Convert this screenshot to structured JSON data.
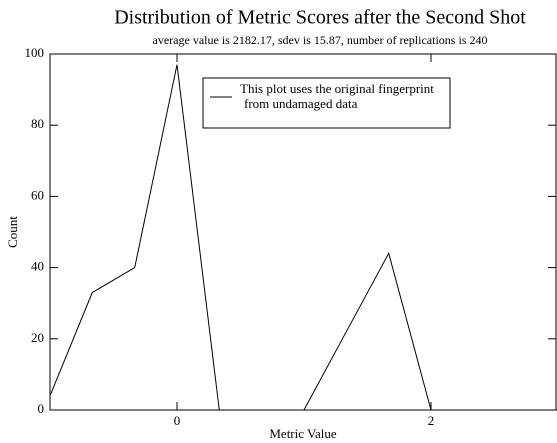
{
  "chart_data": {
    "type": "line",
    "title": "Distribution of Metric Scores after the Second Shot",
    "subtitle": "average value is  2182.17, sdev is  15.87, number of replications is 240",
    "xlabel": "Metric Value",
    "ylabel": "Count",
    "x": [
      -1,
      -0.667,
      -0.333,
      0,
      0.333,
      0.667,
      1,
      1.333,
      1.667,
      2,
      2.333,
      2.667,
      3
    ],
    "series": [
      {
        "name": "This plot uses the original fingerprint from undamaged data",
        "color": "#000000",
        "values": [
          4,
          33,
          40,
          97,
          0,
          0,
          0,
          22,
          44,
          0,
          0,
          0,
          0
        ]
      }
    ],
    "xlim": [
      -1,
      3
    ],
    "xticks": [
      0,
      2
    ],
    "ylim": [
      0,
      100
    ],
    "yticks": [
      0,
      20,
      40,
      60,
      80,
      100
    ],
    "grid": false,
    "legend": "upper center"
  }
}
